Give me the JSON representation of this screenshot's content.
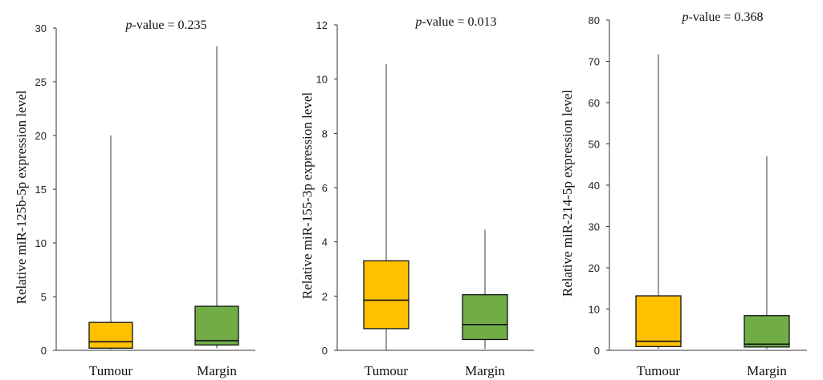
{
  "chart_data": [
    {
      "type": "boxplot",
      "title": "",
      "annotation": {
        "prefix": "p",
        "text": "-value = 0.235"
      },
      "ylabel": "Relative miR-125b-5p expression level",
      "ylim": [
        0,
        30
      ],
      "yticks": [
        "0",
        "5",
        "10",
        "15",
        "20",
        "25",
        "30"
      ],
      "categories": [
        "Tumour",
        "Margin"
      ],
      "boxes": [
        {
          "name": "Tumour",
          "min": 0.1,
          "q1": 0.2,
          "median": 0.8,
          "q3": 2.6,
          "max": 20.0,
          "color": "#FFC000"
        },
        {
          "name": "Margin",
          "min": 0.2,
          "q1": 0.5,
          "median": 0.9,
          "q3": 4.1,
          "max": 28.3,
          "color": "#70AD47"
        }
      ]
    },
    {
      "type": "boxplot",
      "title": "",
      "annotation": {
        "prefix": "p",
        "text": "-value = 0.013"
      },
      "ylabel": "Relative miR-155-3p expression level",
      "ylim": [
        0,
        12
      ],
      "yticks": [
        "0",
        "2",
        "4",
        "6",
        "8",
        "10",
        "12"
      ],
      "categories": [
        "Tumour",
        "Margin"
      ],
      "boxes": [
        {
          "name": "Tumour",
          "min": 0.0,
          "q1": 0.8,
          "median": 1.85,
          "q3": 3.3,
          "max": 10.55,
          "color": "#FFC000"
        },
        {
          "name": "Margin",
          "min": 0.05,
          "q1": 0.4,
          "median": 0.95,
          "q3": 2.05,
          "max": 4.45,
          "color": "#70AD47"
        }
      ]
    },
    {
      "type": "boxplot",
      "title": "",
      "annotation": {
        "prefix": "p",
        "text": "-value = 0.368"
      },
      "ylabel": "Relative miR-214-5p expression level",
      "ylim": [
        0,
        80
      ],
      "yticks": [
        "0",
        "10",
        "20",
        "30",
        "40",
        "50",
        "60",
        "70",
        "80"
      ],
      "categories": [
        "Tumour",
        "Margin"
      ],
      "boxes": [
        {
          "name": "Tumour",
          "min": 0.3,
          "q1": 0.9,
          "median": 2.2,
          "q3": 13.2,
          "max": 71.7,
          "color": "#FFC000"
        },
        {
          "name": "Margin",
          "min": 0.3,
          "q1": 0.8,
          "median": 1.5,
          "q3": 8.4,
          "max": 47.0,
          "color": "#70AD47"
        }
      ]
    }
  ]
}
